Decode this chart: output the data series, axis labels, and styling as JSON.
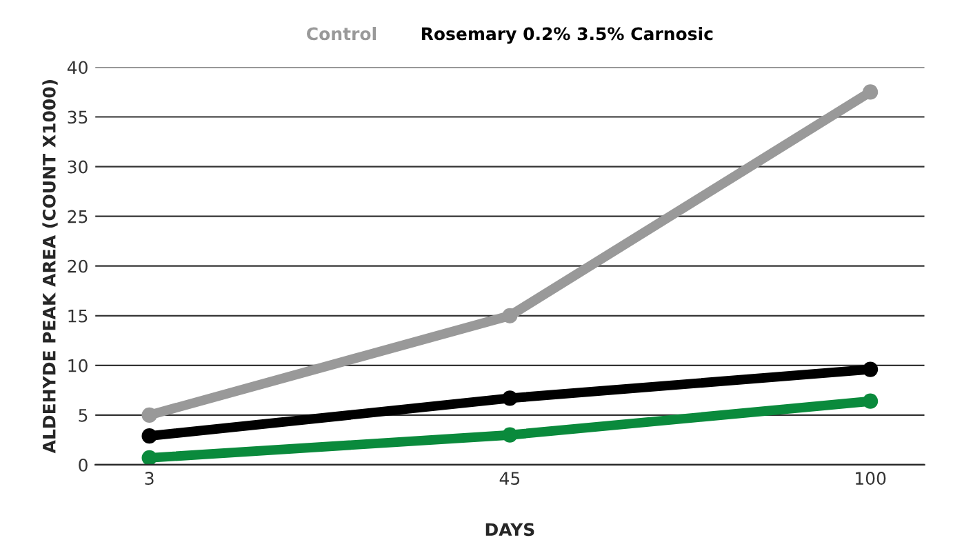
{
  "chart_data": {
    "type": "line",
    "xlabel": "DAYS",
    "ylabel": "ALDEHYDE PEAK AREA (COUNT X1000)",
    "categories": [
      "3",
      "45",
      "100"
    ],
    "series": [
      {
        "name": "Control",
        "color": "#999999",
        "values": [
          5,
          15,
          37.5
        ]
      },
      {
        "name": "Rosemary 0.2% 3.5% Carnosic",
        "color": "#000000",
        "values": [
          2.9,
          6.7,
          9.6
        ]
      },
      {
        "color": "#0a8a3c",
        "values": [
          0.7,
          3,
          6.4
        ]
      }
    ],
    "ylim": [
      0,
      40
    ],
    "yticks": [
      0,
      5,
      10,
      15,
      20,
      25,
      30,
      35,
      40
    ],
    "grid": "y",
    "legend": "top",
    "marker": "circle",
    "line_style": "solid"
  }
}
